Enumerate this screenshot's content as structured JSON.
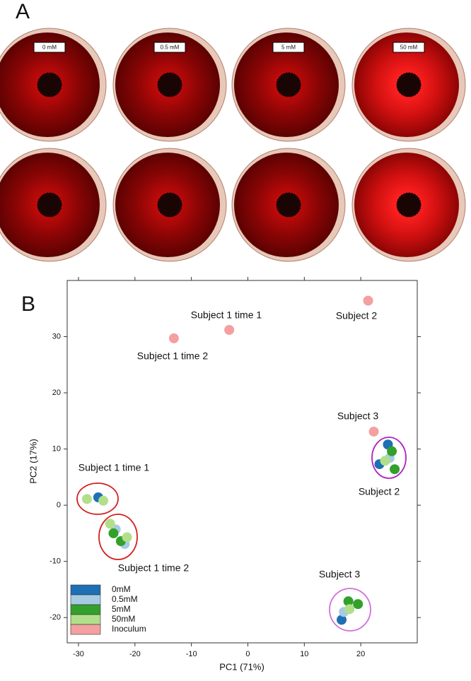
{
  "figure": {
    "panel_a_label": "A",
    "panel_b_label": "B",
    "dish_labels": [
      "0 mM",
      "0.5 mM",
      "5 mM",
      "50 mM"
    ]
  },
  "chart_data": {
    "type": "scatter",
    "xlabel": "PC1 (71%)",
    "ylabel": "PC2 (17%)",
    "xlim": [
      -32,
      30
    ],
    "ylim": [
      -24.5,
      40
    ],
    "xticks": [
      -30,
      -20,
      -10,
      0,
      10,
      20
    ],
    "yticks": [
      -20,
      -10,
      0,
      10,
      20,
      30
    ],
    "legend": "lower left",
    "series": [
      {
        "name": "0mM",
        "color": "#1f6fb4",
        "x": [
          -26.5,
          23.3,
          24.8,
          16.6
        ],
        "values": [
          1.4,
          7.3,
          10.8,
          -20.4
        ]
      },
      {
        "name": "0.5mM",
        "color": "#a6cbe3",
        "x": [
          -23.4,
          -21.8,
          25.1,
          17
        ],
        "values": [
          -4.3,
          -6.9,
          8.4,
          -19
        ]
      },
      {
        "name": "5mM",
        "color": "#33a02c",
        "x": [
          -23.8,
          -22.5,
          25.5,
          26,
          17.8,
          19.5
        ],
        "values": [
          -5,
          -6.4,
          9.6,
          6.4,
          -17.1,
          -17.6
        ]
      },
      {
        "name": "50mM",
        "color": "#b2df8a",
        "x": [
          -28.5,
          -25.6,
          -24.4,
          -21.4,
          24.3,
          18
        ],
        "values": [
          1.1,
          0.8,
          -3.3,
          -5.7,
          7.9,
          -18.5
        ]
      },
      {
        "name": "Inoculum",
        "color": "#f4a0a0",
        "x": [
          -13.1,
          -3.3,
          21.3,
          22.3
        ],
        "values": [
          29.7,
          31.2,
          36.4,
          13.1
        ]
      }
    ],
    "annotations": [
      "Subject 1 time 1",
      "Subject 1 time 2",
      "Subject 2",
      "Subject 3",
      "Subject 1 time 1",
      "Subject 1 time 2",
      "Subject 2",
      "Subject 3"
    ]
  }
}
